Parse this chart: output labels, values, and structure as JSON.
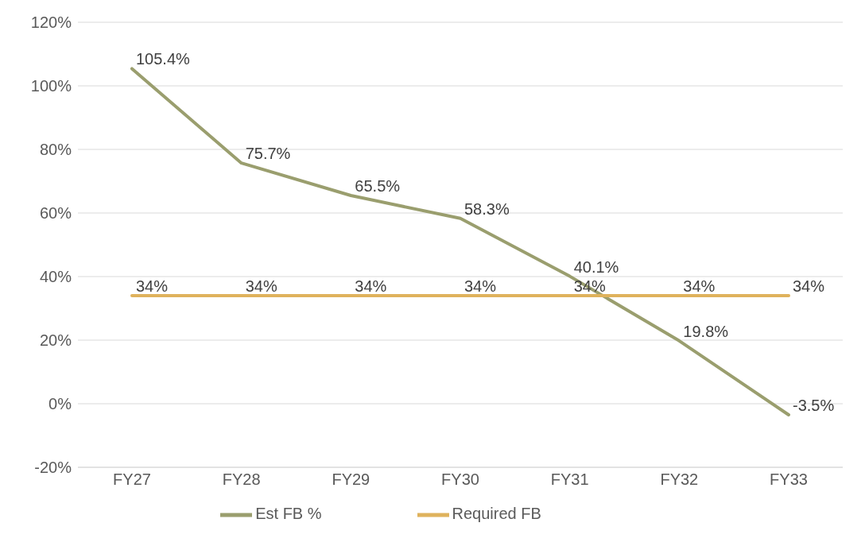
{
  "chart_data": {
    "type": "line",
    "categories": [
      "FY27",
      "FY28",
      "FY29",
      "FY30",
      "FY31",
      "FY32",
      "FY33"
    ],
    "series": [
      {
        "name": "Est FB %",
        "color": "#9a9e6e",
        "values": [
          105.4,
          75.7,
          65.5,
          58.3,
          40.1,
          19.8,
          -3.5
        ],
        "value_labels": [
          "105.4%",
          "75.7%",
          "65.5%",
          "58.3%",
          "40.1%",
          "19.8%",
          "-3.5%"
        ]
      },
      {
        "name": "Required FB",
        "color": "#dfb25c",
        "values": [
          34,
          34,
          34,
          34,
          34,
          34,
          34
        ],
        "value_labels": [
          "34%",
          "34%",
          "34%",
          "34%",
          "34%",
          "34%",
          "34%"
        ]
      }
    ],
    "ylim": [
      -20,
      120
    ],
    "yticks": [
      {
        "value": -20,
        "label": "-20%"
      },
      {
        "value": 0,
        "label": "0%"
      },
      {
        "value": 20,
        "label": "20%"
      },
      {
        "value": 40,
        "label": "40%"
      },
      {
        "value": 60,
        "label": "60%"
      },
      {
        "value": 80,
        "label": "80%"
      },
      {
        "value": 100,
        "label": "100%"
      },
      {
        "value": 120,
        "label": "120%"
      }
    ],
    "grid": "y",
    "legend": "bottom",
    "marker": "none",
    "line_style": "solid"
  }
}
